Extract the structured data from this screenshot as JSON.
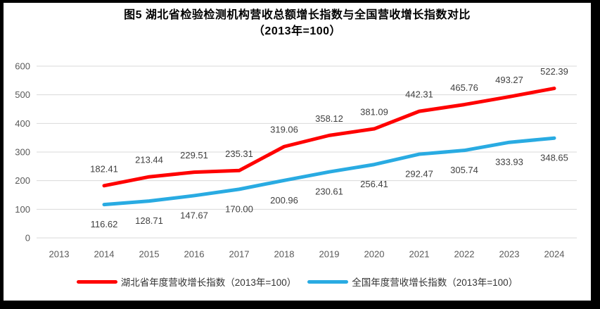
{
  "title": {
    "line1": "图5 湖北省检验检测机构营收总额增长指数与全国营收增长指数对比",
    "line2": "（2013年=100）"
  },
  "chart_data": {
    "type": "line",
    "categories": [
      "2013",
      "2014",
      "2015",
      "2016",
      "2017",
      "2018",
      "2019",
      "2020",
      "2021",
      "2022",
      "2023",
      "2024"
    ],
    "series": [
      {
        "name": "湖北省年度营收增长指数（2013年=100）",
        "color": "#FF0000",
        "label_position": "above",
        "values": [
          null,
          182.41,
          213.44,
          229.51,
          235.31,
          319.06,
          358.12,
          381.09,
          442.31,
          465.76,
          493.27,
          522.39
        ],
        "labels": [
          null,
          "182.41",
          "213.44",
          "229.51",
          "235.31",
          "319.06",
          "358.12",
          "381.09",
          "442.31",
          "465.76",
          "493.27",
          "522.39"
        ]
      },
      {
        "name": "全国年度营收增长指数（2013年=100）",
        "color": "#29ABE2",
        "label_position": "below",
        "values": [
          null,
          116.62,
          128.71,
          147.67,
          170.0,
          200.96,
          230.61,
          256.41,
          292.47,
          305.74,
          333.93,
          348.65
        ],
        "labels": [
          null,
          "116.62",
          "128.71",
          "147.67",
          "170.00",
          "200.96",
          "230.61",
          "256.41",
          "292.47",
          "305.74",
          "333.93",
          "348.65"
        ]
      }
    ],
    "y_ticks": [
      0,
      100,
      200,
      300,
      400,
      500,
      600
    ],
    "ylim": [
      0,
      600
    ],
    "grid": true,
    "legend_position": "bottom",
    "colors": {
      "grid": "#D9D9D9",
      "axis_tick_text": "#595959",
      "data_label_text": "#404040"
    }
  }
}
